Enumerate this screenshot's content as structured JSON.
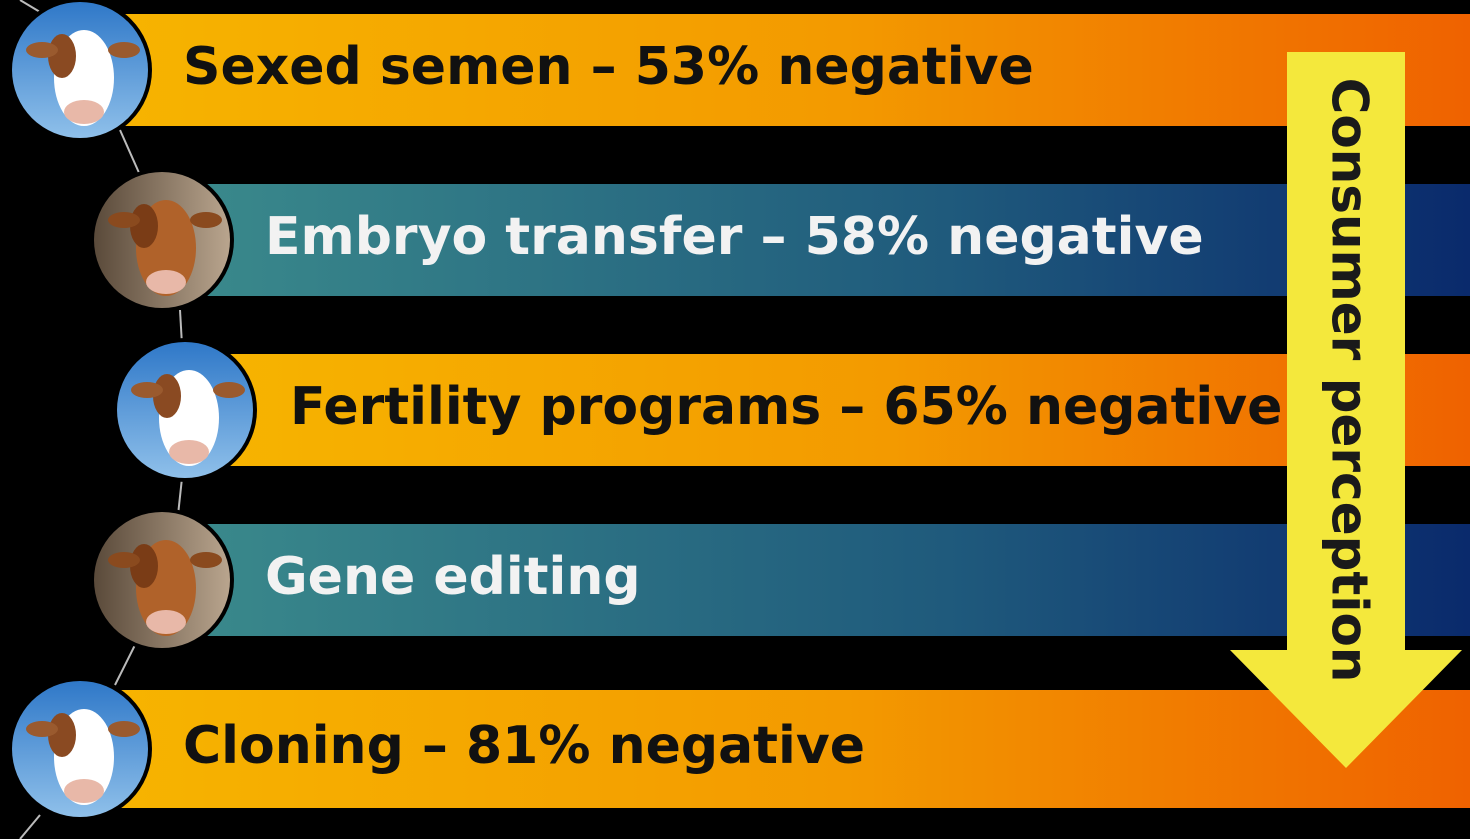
{
  "items": [
    {
      "label": "Sexed semen – 53% negative"
    },
    {
      "label": "Embryo transfer – 58% negative"
    },
    {
      "label": "Fertility programs – 65% negative"
    },
    {
      "label": "Gene editing"
    },
    {
      "label": "Cloning – 81% negative"
    }
  ],
  "arrow": {
    "label": "Consumer perception"
  }
}
